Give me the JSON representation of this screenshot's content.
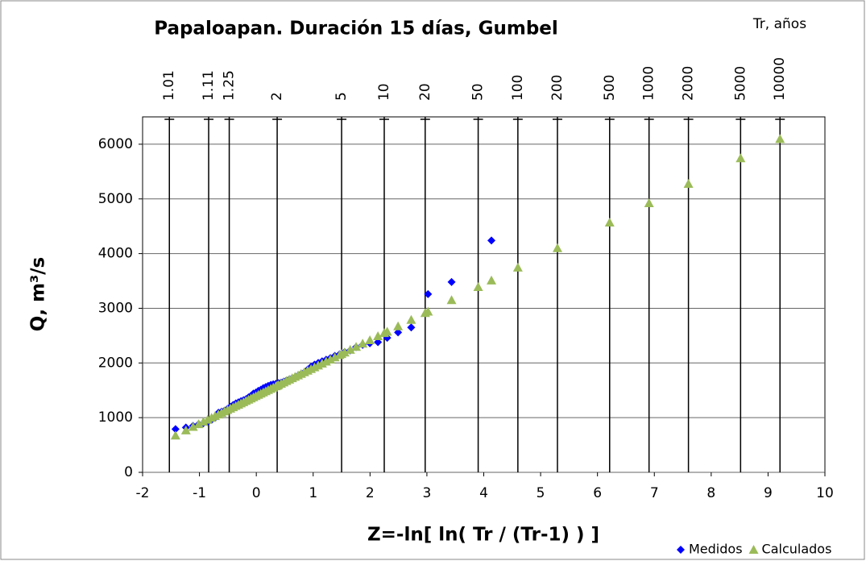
{
  "chart_data": {
    "type": "scatter",
    "title": "Papaloapan. Duración 15 días, Gumbel",
    "xlabel": "Z=-ln[ ln( Tr / (Tr-1) ) ]",
    "ylabel": "Q, m³/s",
    "x2label": "Tr, años",
    "xlim": [
      -2,
      10
    ],
    "ylim": [
      0,
      6500
    ],
    "xticks": [
      -2,
      -1,
      0,
      1,
      2,
      3,
      4,
      5,
      6,
      7,
      8,
      9,
      10
    ],
    "yticks": [
      0,
      1000,
      2000,
      3000,
      4000,
      5000,
      6000
    ],
    "x2ticks": [
      {
        "value": -1.529,
        "label": "1.01"
      },
      {
        "value": -0.838,
        "label": "1.11"
      },
      {
        "value": -0.476,
        "label": "1.25"
      },
      {
        "value": 0.367,
        "label": "2"
      },
      {
        "value": 1.5,
        "label": "5"
      },
      {
        "value": 2.25,
        "label": "10"
      },
      {
        "value": 2.97,
        "label": "20"
      },
      {
        "value": 3.902,
        "label": "50"
      },
      {
        "value": 4.6,
        "label": "100"
      },
      {
        "value": 5.296,
        "label": "200"
      },
      {
        "value": 6.214,
        "label": "500"
      },
      {
        "value": 6.907,
        "label": "1000"
      },
      {
        "value": 7.6,
        "label": "2000"
      },
      {
        "value": 8.517,
        "label": "5000"
      },
      {
        "value": 9.21,
        "label": "10000"
      }
    ],
    "grid": true,
    "legend": "bottom-right",
    "series": [
      {
        "name": "Medidos",
        "color": "#0000ff",
        "marker": "diamond",
        "x": [
          4.135,
          3.434,
          3.02,
          2.724,
          2.493,
          2.302,
          2.139,
          1.997,
          1.87,
          1.755,
          1.651,
          1.554,
          1.465,
          1.381,
          1.302,
          1.228,
          1.157,
          1.089,
          1.024,
          0.962,
          0.903,
          0.845,
          0.789,
          0.735,
          0.682,
          0.631,
          0.581,
          0.531,
          0.483,
          0.436,
          0.389,
          0.344,
          0.298,
          0.254,
          0.209,
          0.166,
          0.122,
          0.079,
          0.036,
          -0.008,
          -0.051,
          -0.094,
          -0.137,
          -0.181,
          -0.225,
          -0.27,
          -0.315,
          -0.361,
          -0.408,
          -0.456,
          -0.506,
          -0.557,
          -0.61,
          -0.666,
          -0.725,
          -0.787,
          -0.855,
          -0.93,
          -1.014,
          -1.113,
          -1.238,
          -1.421
        ],
        "values": [
          4240,
          3480,
          3260,
          2650,
          2560,
          2460,
          2380,
          2360,
          2330,
          2290,
          2230,
          2200,
          2160,
          2130,
          2090,
          2060,
          2030,
          2000,
          1970,
          1930,
          1880,
          1830,
          1800,
          1770,
          1740,
          1720,
          1700,
          1680,
          1660,
          1640,
          1630,
          1620,
          1610,
          1600,
          1580,
          1560,
          1540,
          1510,
          1490,
          1460,
          1440,
          1400,
          1370,
          1340,
          1320,
          1300,
          1280,
          1260,
          1230,
          1200,
          1160,
          1130,
          1110,
          1090,
          1000,
          960,
          920,
          900,
          880,
          850,
          820,
          790
        ]
      },
      {
        "name": "Calculados",
        "color": "#9bbb59",
        "marker": "triangle",
        "x": [
          4.135,
          3.434,
          3.02,
          2.724,
          2.493,
          2.302,
          2.139,
          1.997,
          1.87,
          1.755,
          1.651,
          1.554,
          1.465,
          1.381,
          1.302,
          1.228,
          1.157,
          1.089,
          1.024,
          0.962,
          0.903,
          0.845,
          0.789,
          0.735,
          0.682,
          0.631,
          0.581,
          0.531,
          0.483,
          0.436,
          0.389,
          0.344,
          0.298,
          0.254,
          0.209,
          0.166,
          0.122,
          0.079,
          0.036,
          -0.008,
          -0.051,
          -0.094,
          -0.137,
          -0.181,
          -0.225,
          -0.27,
          -0.315,
          -0.361,
          -0.408,
          -0.456,
          -0.506,
          -0.557,
          -0.61,
          -0.666,
          -0.725,
          -0.787,
          -0.855,
          -0.93,
          -1.014,
          -1.113,
          -1.238,
          -1.421,
          0.367,
          1.5,
          2.25,
          2.97,
          3.902,
          4.6,
          5.296,
          6.214,
          6.907,
          7.6,
          8.517,
          9.21
        ],
        "values": [
          3509,
          3151,
          2940,
          2789,
          2671,
          2574,
          2491,
          2418,
          2354,
          2295,
          2242,
          2193,
          2147,
          2104,
          2064,
          2026,
          1990,
          1955,
          1922,
          1891,
          1861,
          1831,
          1802,
          1775,
          1748,
          1722,
          1696,
          1671,
          1646,
          1622,
          1598,
          1575,
          1552,
          1530,
          1507,
          1485,
          1462,
          1440,
          1418,
          1396,
          1374,
          1352,
          1330,
          1308,
          1285,
          1262,
          1239,
          1216,
          1192,
          1167,
          1142,
          1116,
          1089,
          1060,
          1030,
          999,
          964,
          926,
          883,
          832,
          769,
          675,
          1587,
          2165,
          2548,
          2915,
          3390,
          3746,
          4101,
          4569,
          4923,
          5276,
          5744,
          6097
        ]
      }
    ]
  }
}
